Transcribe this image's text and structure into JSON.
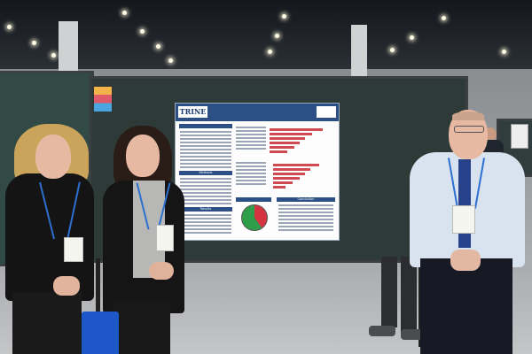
{
  "poster": {
    "logo_left": "TRINE",
    "logo_right": "",
    "title": "",
    "authors": "",
    "sections": {
      "methods": "Methods",
      "results": "Results",
      "conclusion": "Conclusion"
    }
  },
  "colors": {
    "poster_header": "#2c4f86",
    "lanyard": "#2d6fd0",
    "pie_red": "#d4333f",
    "pie_green": "#2f9e4a",
    "bag": "#1e57c8"
  }
}
